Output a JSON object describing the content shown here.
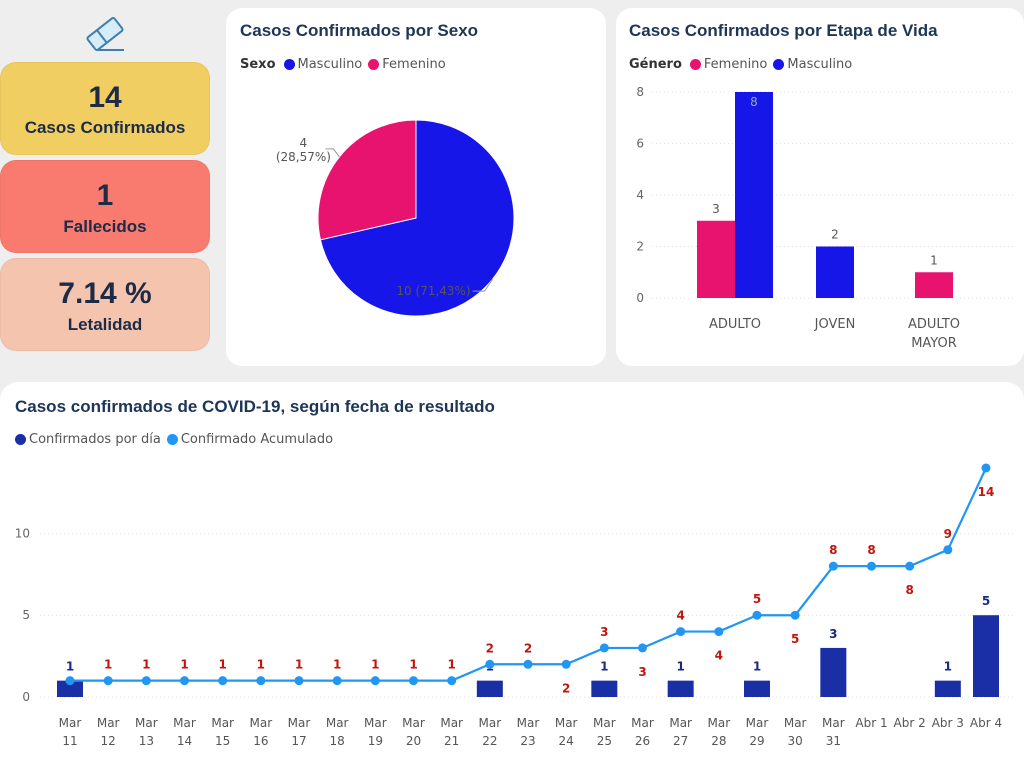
{
  "icons": {
    "logo": "eraser-icon"
  },
  "kpis": [
    {
      "value": "14",
      "label": "Casos Confirmados",
      "color": "#f0ce62"
    },
    {
      "value": "1",
      "label": "Fallecidos",
      "color": "#f97b6f"
    },
    {
      "value": "7.14 %",
      "label": "Letalidad",
      "color": "#f5c4ae"
    }
  ],
  "colors": {
    "masculino": "#1616e8",
    "femenino": "#e8136f",
    "daily_bar": "#1a2fa6",
    "cumulative_line": "#2196f3",
    "label_red": "#c0160f",
    "label_navy": "#1a2a80"
  },
  "sex_card": {
    "title": "Casos Confirmados por Sexo",
    "legend_title": "Sexo",
    "legend_items": [
      "Masculino",
      "Femenino"
    ]
  },
  "age_card": {
    "title": "Casos Confirmados por Etapa de Vida",
    "legend_title": "Género",
    "legend_items": [
      "Femenino",
      "Masculino"
    ]
  },
  "line_card": {
    "title": "Casos confirmados de COVID-19, según fecha de resultado",
    "legend_items": [
      "Confirmados por día",
      "Confirmado Acumulado"
    ]
  },
  "chart_data": [
    {
      "type": "pie",
      "title": "Casos Confirmados por Sexo",
      "slices": [
        {
          "name": "Masculino",
          "value": 10,
          "label": "10 (71,43%)"
        },
        {
          "name": "Femenino",
          "value": 4,
          "label_value": "4",
          "label_pct": "(28,57%)"
        }
      ]
    },
    {
      "type": "bar",
      "title": "Casos Confirmados por Etapa de Vida",
      "categories": [
        "ADULTO",
        "JOVEN",
        "ADULTO MAYOR"
      ],
      "category_lines": [
        [
          "ADULTO"
        ],
        [
          "JOVEN"
        ],
        [
          "ADULTO",
          "MAYOR"
        ]
      ],
      "series": [
        {
          "name": "Femenino",
          "values": [
            3,
            null,
            1
          ]
        },
        {
          "name": "Masculino",
          "values": [
            8,
            2,
            null
          ]
        }
      ],
      "ylim": [
        0,
        8
      ],
      "yticks": [
        0,
        2,
        4,
        6,
        8
      ]
    },
    {
      "type": "bar+line",
      "title": "Casos confirmados de COVID-19, según fecha de resultado",
      "categories": [
        [
          "Mar",
          "11"
        ],
        [
          "Mar",
          "12"
        ],
        [
          "Mar",
          "13"
        ],
        [
          "Mar",
          "14"
        ],
        [
          "Mar",
          "15"
        ],
        [
          "Mar",
          "16"
        ],
        [
          "Mar",
          "17"
        ],
        [
          "Mar",
          "18"
        ],
        [
          "Mar",
          "19"
        ],
        [
          "Mar",
          "20"
        ],
        [
          "Mar",
          "21"
        ],
        [
          "Mar",
          "22"
        ],
        [
          "Mar",
          "23"
        ],
        [
          "Mar",
          "24"
        ],
        [
          "Mar",
          "25"
        ],
        [
          "Mar",
          "26"
        ],
        [
          "Mar",
          "27"
        ],
        [
          "Mar",
          "28"
        ],
        [
          "Mar",
          "29"
        ],
        [
          "Mar",
          "30"
        ],
        [
          "Mar",
          "31"
        ],
        [
          "Abr 1",
          ""
        ],
        [
          "Abr 2",
          ""
        ],
        [
          "Abr 3",
          ""
        ],
        [
          "Abr 4",
          ""
        ]
      ],
      "series": [
        {
          "name": "Confirmados por día",
          "kind": "bar",
          "values": [
            1,
            null,
            null,
            null,
            null,
            null,
            null,
            null,
            null,
            null,
            null,
            1,
            null,
            null,
            1,
            null,
            1,
            null,
            1,
            null,
            3,
            null,
            null,
            1,
            5
          ]
        },
        {
          "name": "Confirmado Acumulado",
          "kind": "line",
          "values": [
            1,
            1,
            1,
            1,
            1,
            1,
            1,
            1,
            1,
            1,
            1,
            2,
            2,
            2,
            3,
            3,
            4,
            4,
            5,
            5,
            8,
            8,
            8,
            9,
            14
          ],
          "label_position": [
            "",
            "above",
            "above",
            "above",
            "above",
            "above",
            "above",
            "above",
            "above",
            "above",
            "above",
            "above",
            "above",
            "below",
            "above",
            "below",
            "above",
            "below",
            "above",
            "below",
            "above",
            "above",
            "below",
            "above",
            "below"
          ]
        }
      ],
      "ylim": [
        0,
        14
      ],
      "yticks": [
        0,
        5,
        10
      ]
    }
  ]
}
